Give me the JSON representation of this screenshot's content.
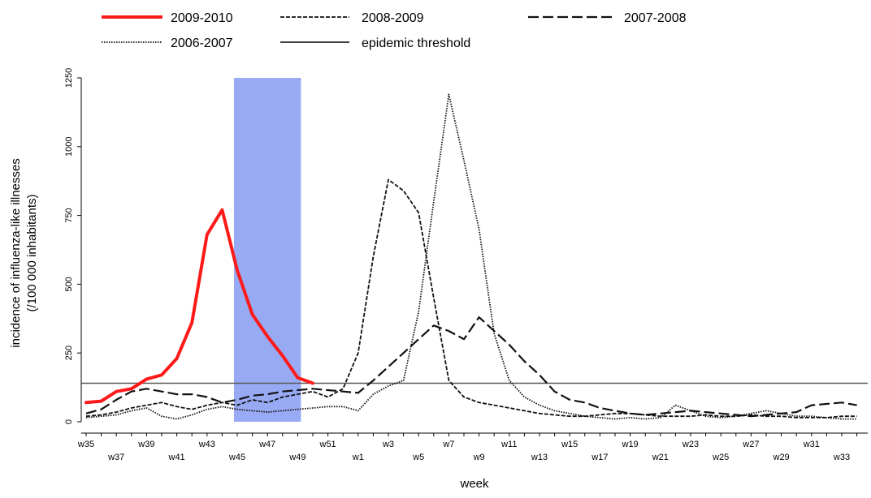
{
  "chart_data": {
    "type": "line",
    "title": "",
    "xlabel": "week",
    "ylabel_lines": [
      "incidence of influenza-like illnesses",
      "(/100 000 inhabitants)"
    ],
    "ylim": [
      0,
      1250
    ],
    "yticks": [
      0,
      250,
      500,
      750,
      1000,
      1250
    ],
    "grid": false,
    "legend_position": "top",
    "x_week_labels": [
      "w35",
      "w37",
      "w39",
      "w41",
      "w43",
      "w45",
      "w47",
      "w49",
      "w51",
      "w1",
      "w3",
      "w5",
      "w7",
      "w9",
      "w11",
      "w13",
      "w15",
      "w17",
      "w19",
      "w21",
      "w23",
      "w25",
      "w27",
      "w29",
      "w31",
      "w33"
    ],
    "epidemic_threshold": {
      "name": "epidemic threshold",
      "value": 140,
      "color": "#555555"
    },
    "highlight_band": {
      "from_week": "w45",
      "to_week": "w49",
      "color": "#99aaf5"
    },
    "series": [
      {
        "name": "2009-2010",
        "color": "#ff1a1a",
        "style": "solid-thick",
        "values": [
          70,
          75,
          110,
          120,
          155,
          170,
          230,
          360,
          680,
          770,
          550,
          390,
          310,
          240,
          160,
          140
        ]
      },
      {
        "name": "2008-2009",
        "color": "#111111",
        "style": "short-dash",
        "values": [
          20,
          25,
          35,
          50,
          60,
          70,
          55,
          45,
          60,
          70,
          60,
          80,
          70,
          90,
          100,
          110,
          90,
          120,
          250,
          600,
          880,
          840,
          760,
          450,
          150,
          90,
          70,
          60,
          50,
          40,
          30,
          25,
          20,
          20,
          25,
          30,
          30,
          25,
          20,
          20,
          20,
          25,
          20,
          20,
          25,
          20,
          20,
          15,
          15,
          15,
          20,
          20
        ]
      },
      {
        "name": "2007-2008",
        "color": "#111111",
        "style": "long-dash",
        "values": [
          30,
          45,
          80,
          110,
          120,
          110,
          100,
          100,
          90,
          70,
          80,
          95,
          100,
          110,
          115,
          120,
          115,
          110,
          105,
          150,
          200,
          250,
          300,
          350,
          330,
          300,
          380,
          330,
          280,
          220,
          170,
          110,
          80,
          70,
          50,
          40,
          30,
          25,
          30,
          35,
          40,
          35,
          30,
          25,
          20,
          25,
          30,
          35,
          60,
          65,
          70,
          60
        ]
      },
      {
        "name": "2006-2007",
        "color": "#111111",
        "style": "dotted",
        "values": [
          15,
          20,
          25,
          40,
          50,
          20,
          10,
          25,
          45,
          55,
          45,
          40,
          35,
          40,
          45,
          50,
          55,
          55,
          40,
          100,
          130,
          150,
          400,
          800,
          1190,
          950,
          700,
          320,
          150,
          90,
          60,
          40,
          30,
          20,
          15,
          10,
          15,
          10,
          15,
          60,
          40,
          20,
          15,
          20,
          30,
          40,
          30,
          20,
          20,
          15,
          10,
          10
        ]
      }
    ]
  },
  "legend": {
    "items": [
      {
        "label": "2009-2010"
      },
      {
        "label": "2008-2009"
      },
      {
        "label": "2007-2008"
      },
      {
        "label": "2006-2007"
      },
      {
        "label": "epidemic threshold"
      }
    ]
  }
}
